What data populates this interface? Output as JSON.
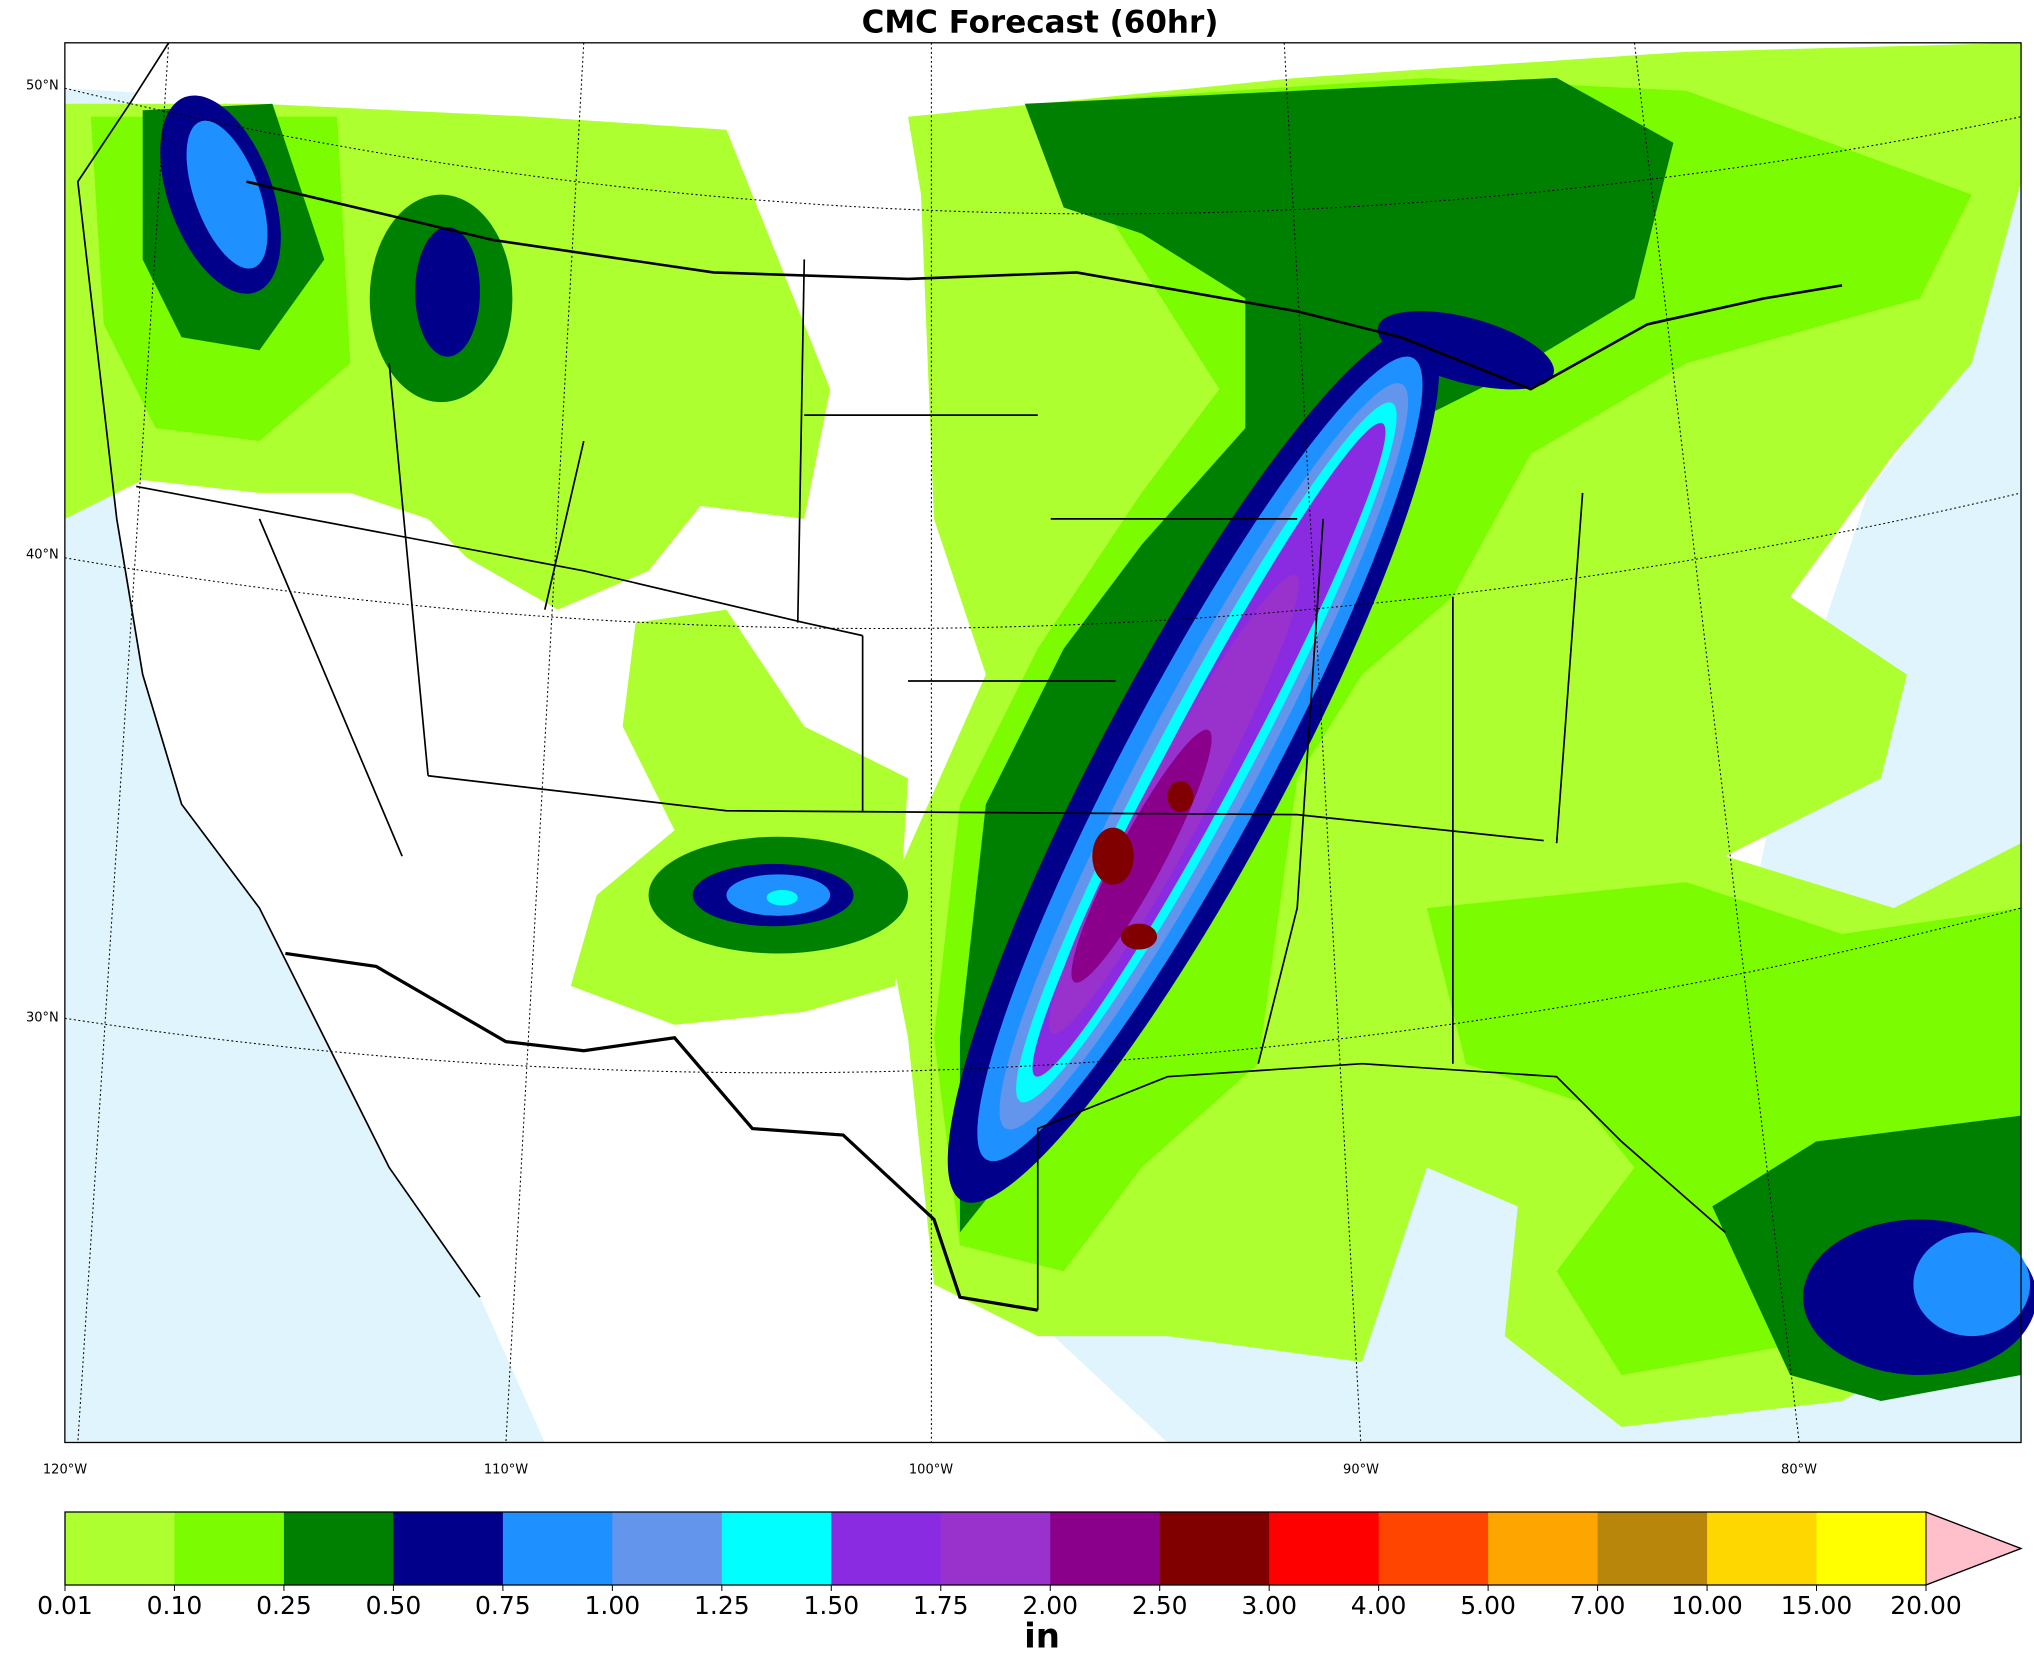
{
  "title": "CMC Forecast (60hr)",
  "map": {
    "lat_labels": [
      "50°N",
      "40°N",
      "30°N"
    ],
    "lon_labels": [
      "120°W",
      "110°W",
      "100°W",
      "90°W",
      "80°W"
    ]
  },
  "colorbar": {
    "label": "in",
    "colors": [
      "#adff2f",
      "#7cfc00",
      "#008000",
      "#00008b",
      "#1e90ff",
      "#6495ed",
      "#00ffff",
      "#8a2be2",
      "#9932cc",
      "#8b008b",
      "#800000",
      "#ff0000",
      "#ff4500",
      "#ffa500",
      "#b8860b",
      "#ffd700",
      "#ffff00"
    ],
    "extend_color": "#ffc0cb",
    "ticks": [
      0.01,
      {
        "value": 0.1,
        "label": "0.10"
      },
      0.25,
      {
        "value": 0.5,
        "label": "0.50"
      },
      0.75,
      {
        "value": 1,
        "label": "1.00"
      },
      1.25,
      {
        "value": 1.5,
        "label": "1.50"
      },
      1.75,
      {
        "value": 2,
        "label": "2.00"
      },
      {
        "value": 2.5,
        "label": "2.50"
      },
      {
        "value": 3,
        "label": "3.00"
      },
      {
        "value": 4,
        "label": "4.00"
      },
      {
        "value": 5,
        "label": "5.00"
      },
      {
        "value": 7,
        "label": "7.00"
      },
      {
        "value": 10,
        "label": "10.00"
      },
      {
        "value": 15,
        "label": "15.00"
      },
      {
        "value": 20,
        "label": "20.00"
      }
    ]
  }
}
